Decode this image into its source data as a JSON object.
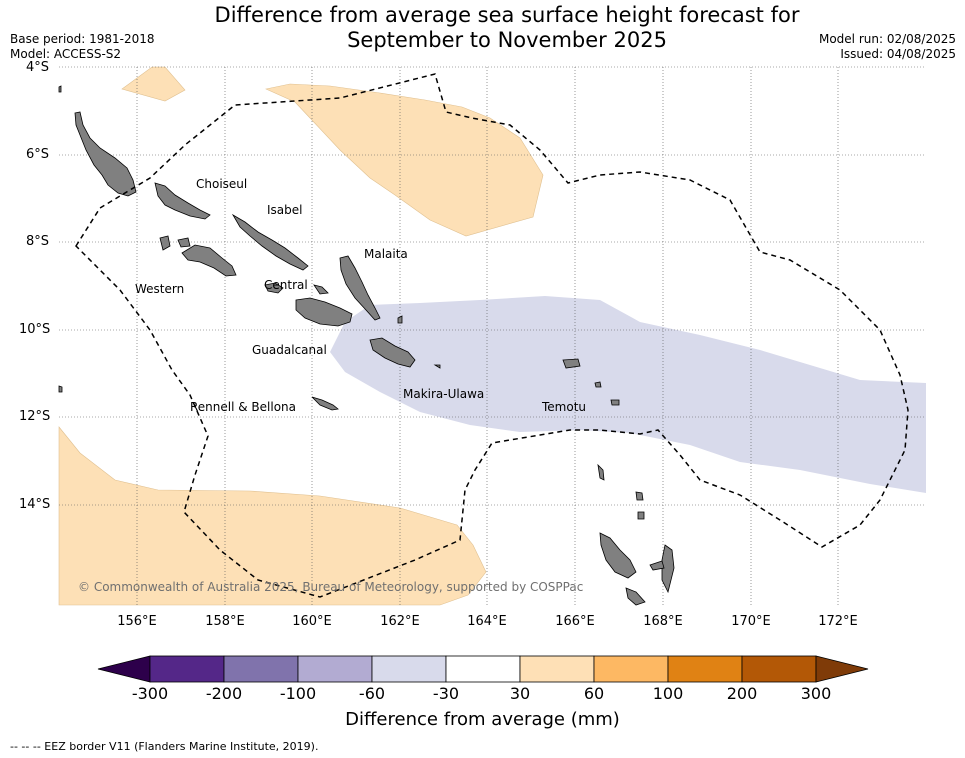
{
  "title_line1": "Difference from average sea surface height forecast for",
  "title_line2": "September to November 2025",
  "meta": {
    "base_period": "Base period: 1981-2018",
    "model": "Model: ACCESS-S2",
    "model_run": "Model run: 02/08/2025",
    "issued": "Issued: 04/08/2025"
  },
  "axes": {
    "lat_labels": [
      "4°S",
      "6°S",
      "8°S",
      "10°S",
      "12°S",
      "14°S"
    ],
    "lon_labels": [
      "156°E",
      "158°E",
      "160°E",
      "162°E",
      "164°E",
      "166°E",
      "168°E",
      "170°E",
      "172°E"
    ]
  },
  "regions": [
    {
      "label": "Choiseul"
    },
    {
      "label": "Isabel"
    },
    {
      "label": "Malaita"
    },
    {
      "label": "Western"
    },
    {
      "label": "Central"
    },
    {
      "label": "Guadalcanal"
    },
    {
      "label": "Makira-Ulawa"
    },
    {
      "label": "Rennell & Bellona"
    },
    {
      "label": "Temotu"
    }
  ],
  "copyright": "© Commonwealth of Australia 2025, Bureau of Meteorology, supported by COSPPac",
  "colorbar": {
    "title": "Difference from average (mm)",
    "ticks": [
      "-300",
      "-200",
      "-100",
      "-60",
      "-30",
      "30",
      "60",
      "100",
      "200",
      "300"
    ],
    "colors": [
      "#2d004b",
      "#542788",
      "#8073ac",
      "#b2abd2",
      "#d8daeb",
      "#ffffff",
      "#fee0b6",
      "#fdb863",
      "#e08214",
      "#b35806",
      "#7f3b08"
    ]
  },
  "footer": "--  --  -- EEZ border V11 (Flanders Marine Institute, 2019).",
  "colors": {
    "anomaly_positive": "#fde0b6",
    "anomaly_negative": "#d8daeb",
    "land": "#808080"
  }
}
